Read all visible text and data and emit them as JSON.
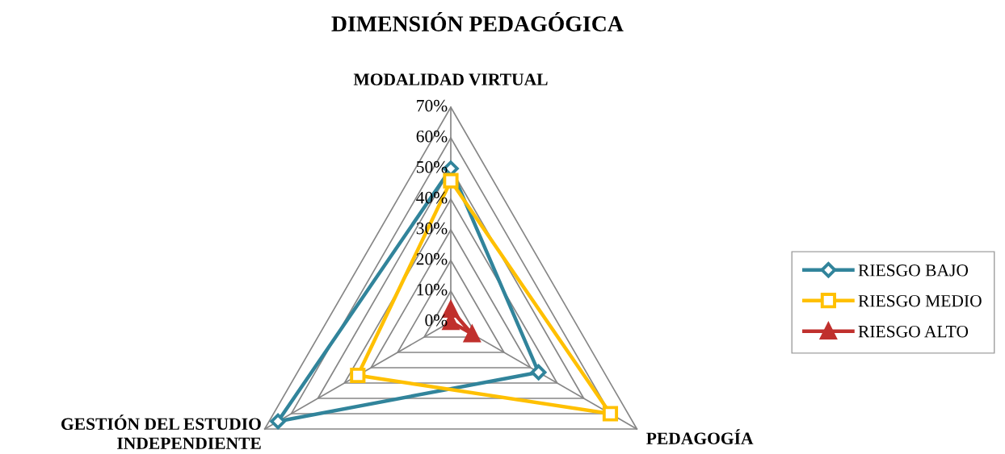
{
  "chart_data": {
    "type": "radar",
    "title": "DIMENSIÓN PEDAGÓGICA",
    "categories": [
      "MODALIDAD VIRTUAL",
      "PEDAGOGÍA",
      "GESTIÓN DEL ESTUDIO INDEPENDIENTE"
    ],
    "series": [
      {
        "name": "RIESGO BAJO",
        "color": "#31849b",
        "marker": "diamond",
        "values": [
          50,
          33,
          65
        ]
      },
      {
        "name": "RIESGO MEDIO",
        "color": "#ffc000",
        "marker": "square",
        "values": [
          46,
          60,
          35
        ]
      },
      {
        "name": "RIESGO ALTO",
        "color": "#c0302d",
        "marker": "triangle",
        "values": [
          4,
          8,
          0
        ]
      }
    ],
    "ylim": [
      0,
      70
    ],
    "yticks": [
      {
        "value": 0,
        "label": "0%"
      },
      {
        "value": 10,
        "label": "10%"
      },
      {
        "value": 20,
        "label": "20%"
      },
      {
        "value": 30,
        "label": "30%"
      },
      {
        "value": 40,
        "label": "40%"
      },
      {
        "value": 50,
        "label": "50%"
      },
      {
        "value": 60,
        "label": "60%"
      },
      {
        "value": 70,
        "label": "70%"
      }
    ],
    "legend": "right",
    "line_style": "solid"
  }
}
